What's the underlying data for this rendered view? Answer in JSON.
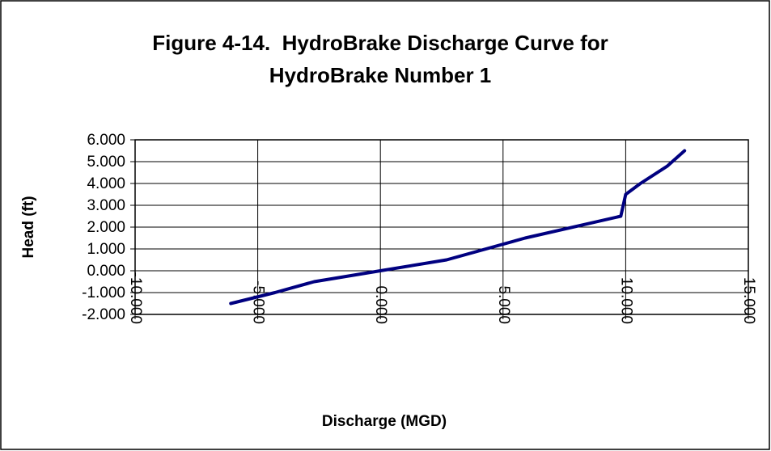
{
  "chart_data": {
    "type": "line",
    "title": [
      "Figure 4-14.  HydroBrake Discharge Curve for",
      "HydroBrake Number 1"
    ],
    "xlabel": "Discharge (MGD)",
    "ylabel": "Head (ft)",
    "series": [
      {
        "color": "#000080",
        "x": [
          -6.1,
          -4.3,
          -2.7,
          0,
          2.7,
          5.9,
          9.8,
          10.0,
          10.6,
          11.7,
          12.4
        ],
        "values": [
          -1.5,
          -1.0,
          -0.5,
          0,
          0.5,
          1.5,
          2.5,
          3.5,
          4.0,
          4.8,
          5.5
        ]
      }
    ],
    "xlim": [
      -10,
      15
    ],
    "xticks": [
      {
        "value": -10,
        "label": "-10.000"
      },
      {
        "value": -5,
        "label": "-5.000"
      },
      {
        "value": 0,
        "label": "0.000"
      },
      {
        "value": 5,
        "label": "5.000"
      },
      {
        "value": 10,
        "label": "10.000"
      },
      {
        "value": 15,
        "label": "15.000"
      }
    ],
    "ylim": [
      -2,
      6
    ],
    "yticks": [
      {
        "value": -2,
        "label": "-2.000"
      },
      {
        "value": -1,
        "label": "-1.000"
      },
      {
        "value": 0,
        "label": "0.000"
      },
      {
        "value": 1,
        "label": "1.000"
      },
      {
        "value": 2,
        "label": "2.000"
      },
      {
        "value": 3,
        "label": "3.000"
      },
      {
        "value": 4,
        "label": "4.000"
      },
      {
        "value": 5,
        "label": "5.000"
      },
      {
        "value": 6,
        "label": "6.000"
      }
    ],
    "grid": true
  }
}
